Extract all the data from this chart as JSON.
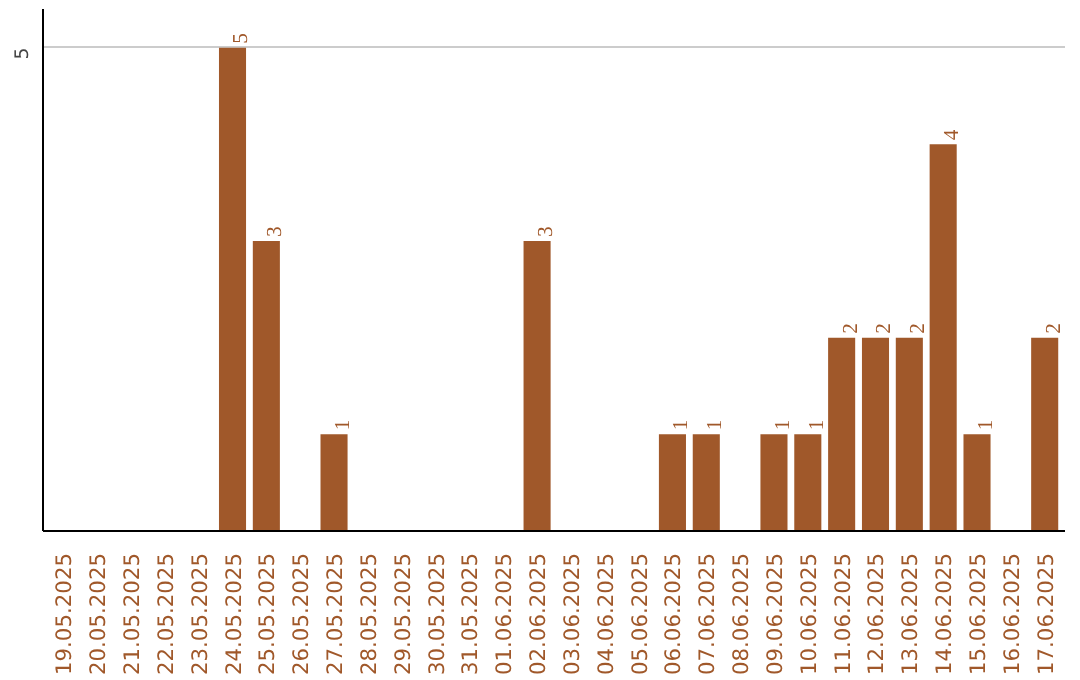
{
  "chart_data": {
    "type": "bar",
    "categories": [
      "19.05.2025",
      "20.05.2025",
      "21.05.2025",
      "22.05.2025",
      "23.05.2025",
      "24.05.2025",
      "25.05.2025",
      "26.05.2025",
      "27.05.2025",
      "28.05.2025",
      "29.05.2025",
      "30.05.2025",
      "31.05.2025",
      "01.06.2025",
      "02.06.2025",
      "03.06.2025",
      "04.06.2025",
      "05.06.2025",
      "06.06.2025",
      "07.06.2025",
      "08.06.2025",
      "09.06.2025",
      "10.06.2025",
      "11.06.2025",
      "12.06.2025",
      "13.06.2025",
      "14.06.2025",
      "15.06.2025",
      "16.06.2025",
      "17.06.2025"
    ],
    "values": [
      0,
      0,
      0,
      0,
      0,
      5,
      3,
      0,
      1,
      0,
      0,
      0,
      0,
      0,
      3,
      0,
      0,
      0,
      1,
      1,
      0,
      1,
      1,
      2,
      2,
      2,
      4,
      1,
      0,
      2
    ],
    "value_labels": [
      null,
      null,
      null,
      null,
      null,
      "5",
      "3",
      null,
      "1",
      null,
      null,
      null,
      null,
      null,
      "3",
      null,
      null,
      null,
      "1",
      "1",
      null,
      "1",
      "1",
      "2",
      "2",
      "2",
      "4",
      "1",
      null,
      "2"
    ],
    "color": "#a0582a",
    "ylim": [
      0,
      5.4
    ],
    "yticks": [
      5
    ],
    "grid": "y"
  }
}
